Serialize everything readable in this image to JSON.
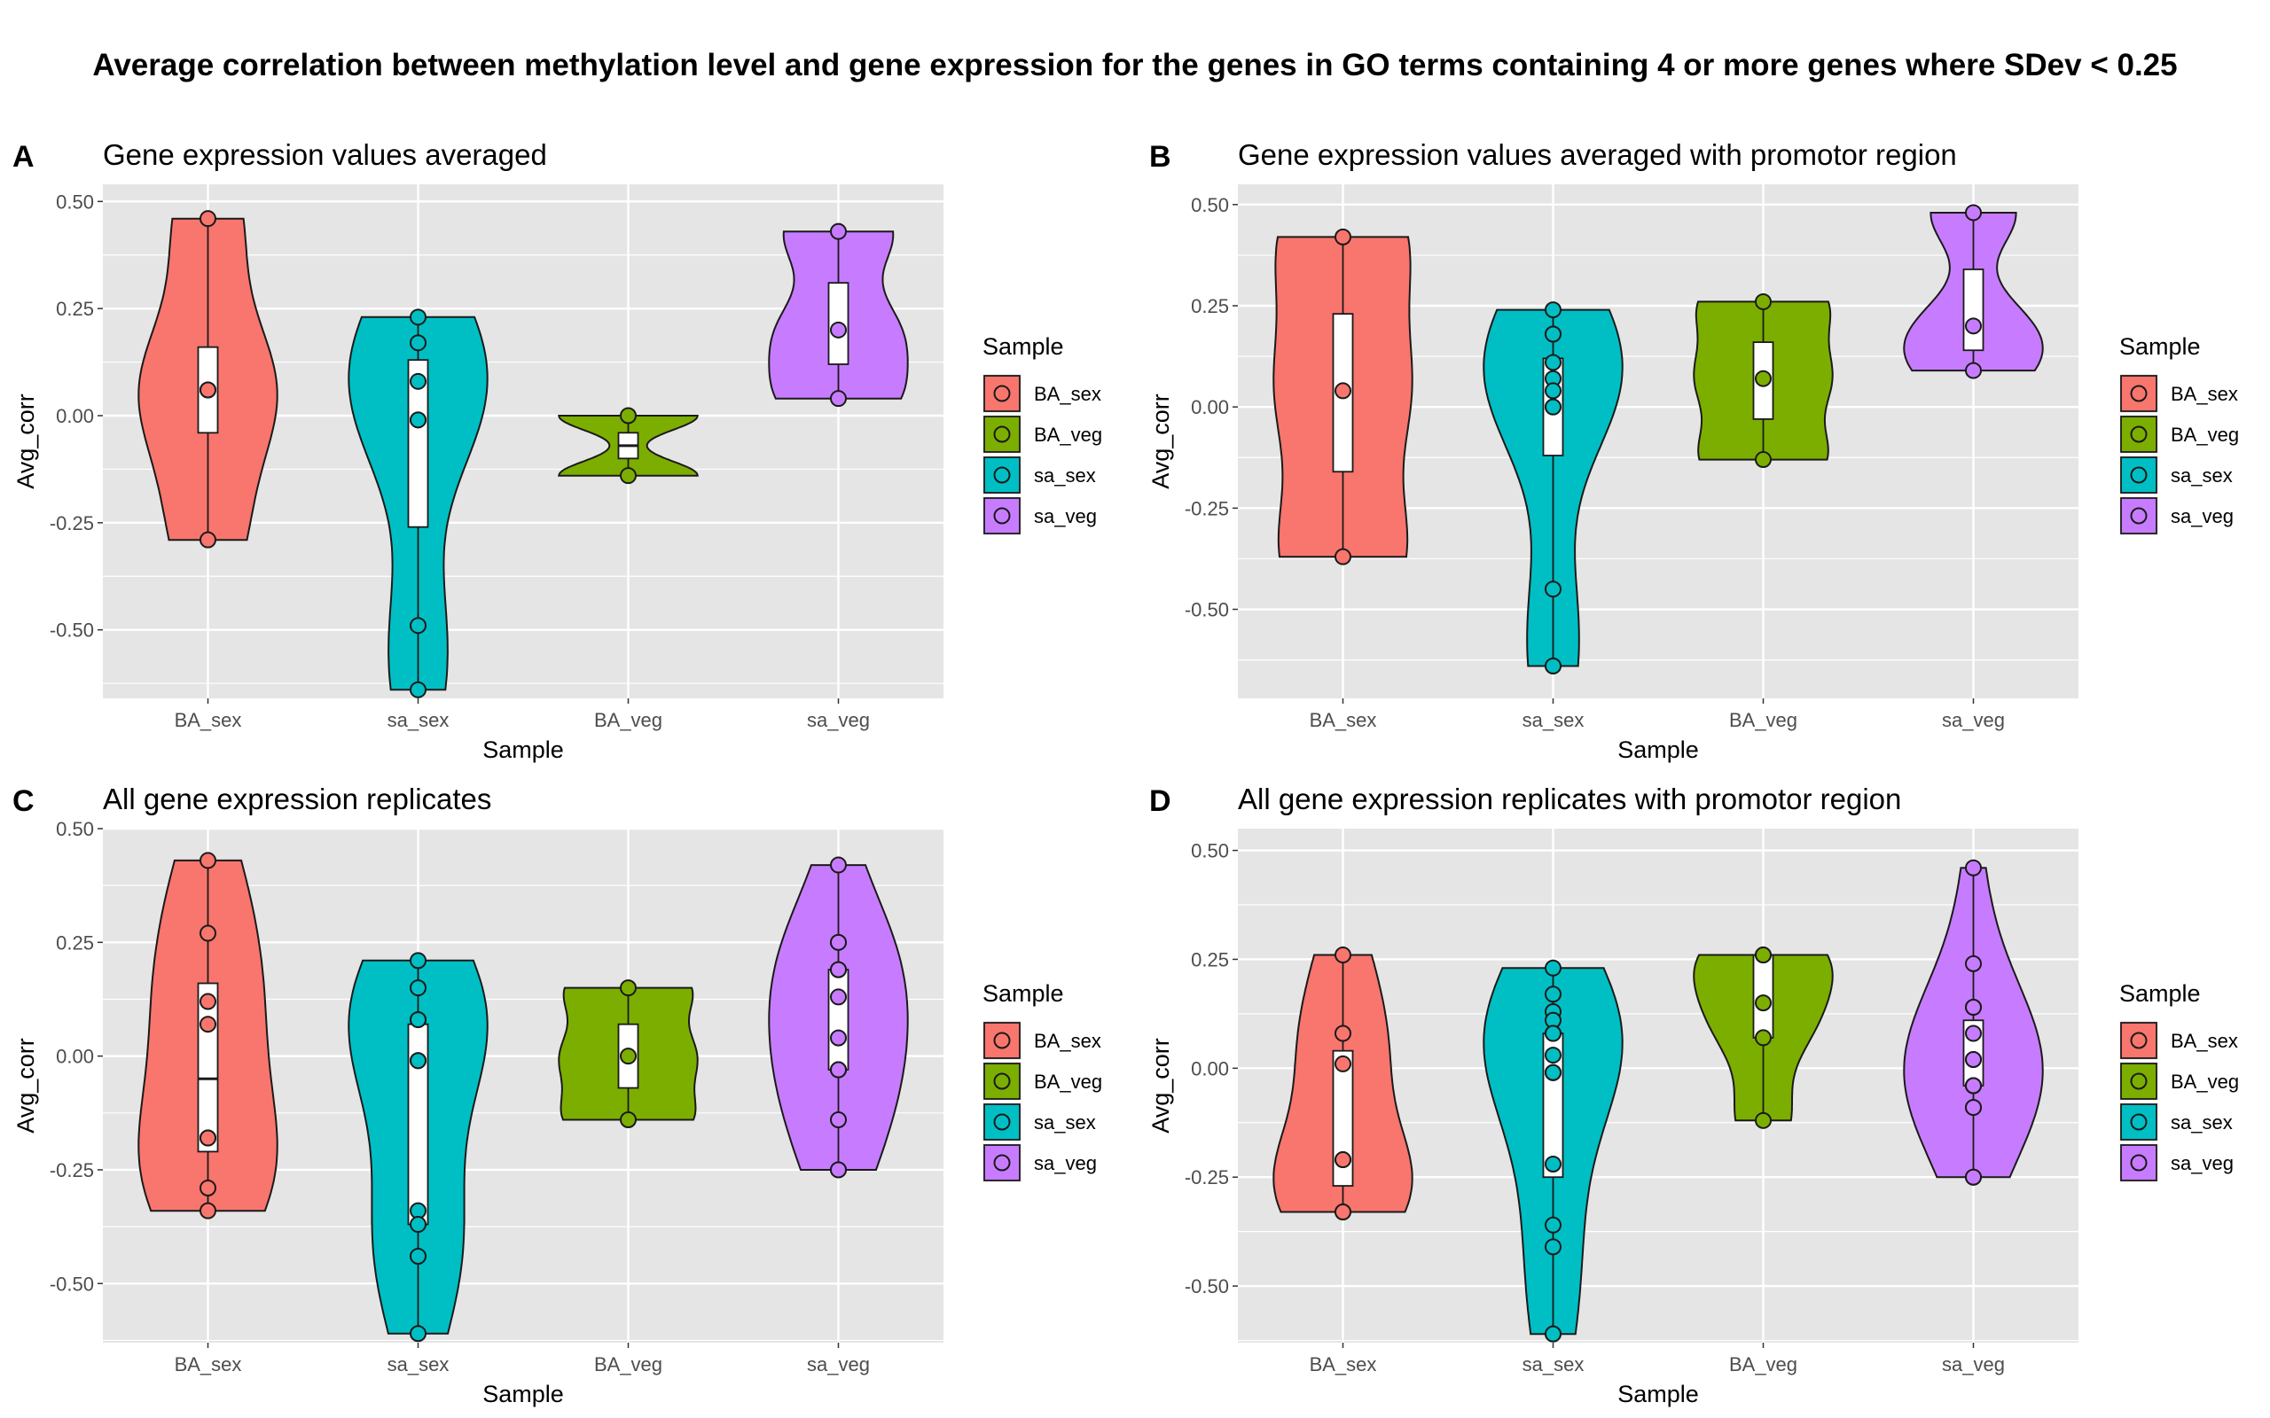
{
  "title": "Average correlation between methylation level and gene expression for the genes in GO terms containing 4 or more genes where SDev < 0.25",
  "colors": {
    "BA_sex": "#F8766D",
    "BA_veg": "#7CAE00",
    "sa_sex": "#00BFC4",
    "sa_veg": "#C77CFF",
    "panel_background": "#e5e5e5",
    "grid": "#ffffff"
  },
  "chart_data": [
    {
      "type": "violin",
      "panel_letter": "A",
      "title": "Gene expression values averaged",
      "xlabel": "Sample",
      "ylabel": "Avg_corr",
      "ylim": [
        -0.66,
        0.54
      ],
      "y_ticks": [
        "0.50",
        "0.25",
        "0.00",
        "-0.25",
        "-0.50"
      ],
      "categories": [
        "BA_sex",
        "sa_sex",
        "BA_veg",
        "sa_veg"
      ],
      "legend": {
        "title": "Sample",
        "items": [
          "BA_sex",
          "BA_veg",
          "sa_sex",
          "sa_veg"
        ]
      },
      "series": [
        {
          "category": "BA_sex",
          "points": [
            0.46,
            0.06,
            0.06,
            -0.29
          ],
          "box": [
            -0.04,
            0.06,
            0.16
          ],
          "median_drawn": false
        },
        {
          "category": "sa_sex",
          "points": [
            0.23,
            0.17,
            0.08,
            -0.01,
            -0.01,
            -0.49,
            -0.64
          ],
          "box": [
            -0.26,
            -0.01,
            0.13
          ],
          "median_drawn": false
        },
        {
          "category": "BA_veg",
          "points": [
            0.0,
            -0.14
          ],
          "box": [
            -0.1,
            -0.07,
            -0.04
          ],
          "median_drawn": true
        },
        {
          "category": "sa_veg",
          "points": [
            0.43,
            0.2,
            0.04
          ],
          "box": [
            0.12,
            0.2,
            0.31
          ],
          "median_drawn": false
        }
      ]
    },
    {
      "type": "violin",
      "panel_letter": "B",
      "title": "Gene expression values averaged with promotor region",
      "xlabel": "Sample",
      "ylabel": "Avg_corr",
      "ylim": [
        -0.72,
        0.55
      ],
      "y_ticks": [
        "0.50",
        "0.25",
        "0.00",
        "-0.25",
        "-0.50"
      ],
      "categories": [
        "BA_sex",
        "sa_sex",
        "BA_veg",
        "sa_veg"
      ],
      "legend": {
        "title": "Sample",
        "items": [
          "BA_sex",
          "BA_veg",
          "sa_sex",
          "sa_veg"
        ]
      },
      "series": [
        {
          "category": "BA_sex",
          "points": [
            0.42,
            0.04,
            -0.37
          ],
          "box": [
            -0.16,
            0.04,
            0.23
          ],
          "median_drawn": false
        },
        {
          "category": "sa_sex",
          "points": [
            0.24,
            0.18,
            0.18,
            0.11,
            0.07,
            0.04,
            0.0,
            0.0,
            -0.45,
            -0.64,
            -0.64
          ],
          "box": [
            -0.12,
            0.04,
            0.12
          ],
          "median_drawn": false
        },
        {
          "category": "BA_veg",
          "points": [
            0.26,
            0.07,
            -0.13
          ],
          "box": [
            -0.03,
            0.07,
            0.16
          ],
          "median_drawn": false
        },
        {
          "category": "sa_veg",
          "points": [
            0.48,
            0.2,
            0.09
          ],
          "box": [
            0.14,
            0.2,
            0.34
          ],
          "median_drawn": false
        }
      ]
    },
    {
      "type": "violin",
      "panel_letter": "C",
      "title": "All gene expression replicates",
      "xlabel": "Sample",
      "ylabel": "Avg_corr",
      "ylim": [
        -0.63,
        0.5
      ],
      "y_ticks": [
        "0.50",
        "0.25",
        "0.00",
        "-0.25",
        "-0.50"
      ],
      "categories": [
        "BA_sex",
        "sa_sex",
        "BA_veg",
        "sa_veg"
      ],
      "legend": {
        "title": "Sample",
        "items": [
          "BA_sex",
          "BA_veg",
          "sa_sex",
          "sa_veg"
        ]
      },
      "series": [
        {
          "category": "BA_sex",
          "points": [
            0.43,
            0.27,
            0.12,
            0.07,
            -0.18,
            -0.18,
            -0.29,
            -0.34
          ],
          "box": [
            -0.21,
            -0.05,
            0.16
          ],
          "median_drawn": true
        },
        {
          "category": "sa_sex",
          "points": [
            0.21,
            0.15,
            0.08,
            0.08,
            -0.01,
            -0.01,
            -0.34,
            -0.37,
            -0.44,
            -0.61
          ],
          "box": [
            -0.37,
            -0.01,
            0.07
          ],
          "median_drawn": false
        },
        {
          "category": "BA_veg",
          "points": [
            0.15,
            0.0,
            -0.14
          ],
          "box": [
            -0.07,
            0.0,
            0.07
          ],
          "median_drawn": false
        },
        {
          "category": "sa_veg",
          "points": [
            0.42,
            0.25,
            0.25,
            0.19,
            0.19,
            0.13,
            0.04,
            -0.03,
            -0.03,
            -0.03,
            -0.14,
            -0.25,
            -0.25
          ],
          "box": [
            -0.03,
            0.04,
            0.19
          ],
          "median_drawn": false
        }
      ]
    },
    {
      "type": "violin",
      "panel_letter": "D",
      "title": "All gene expression replicates with promotor region",
      "xlabel": "Sample",
      "ylabel": "Avg_corr",
      "ylim": [
        -0.63,
        0.55
      ],
      "y_ticks": [
        "0.50",
        "0.25",
        "0.00",
        "-0.25",
        "-0.50"
      ],
      "categories": [
        "BA_sex",
        "sa_sex",
        "BA_veg",
        "sa_veg"
      ],
      "legend": {
        "title": "Sample",
        "items": [
          "BA_sex",
          "BA_veg",
          "sa_sex",
          "sa_veg"
        ]
      },
      "series": [
        {
          "category": "BA_sex",
          "points": [
            0.26,
            0.08,
            0.01,
            -0.21,
            -0.21,
            -0.33,
            -0.33
          ],
          "box": [
            -0.27,
            0.01,
            0.04
          ],
          "median_drawn": false
        },
        {
          "category": "sa_sex",
          "points": [
            0.23,
            0.17,
            0.13,
            0.11,
            0.08,
            0.08,
            0.03,
            -0.01,
            -0.01,
            -0.01,
            -0.22,
            -0.36,
            -0.41,
            -0.61,
            -0.61
          ],
          "box": [
            -0.25,
            0.03,
            0.08
          ],
          "median_drawn": false
        },
        {
          "category": "BA_veg",
          "points": [
            0.26,
            0.26,
            0.15,
            0.07,
            -0.12
          ],
          "box": [
            0.07,
            0.15,
            0.26
          ],
          "median_drawn": false
        },
        {
          "category": "sa_veg",
          "points": [
            0.46,
            0.24,
            0.14,
            0.14,
            0.08,
            0.02,
            0.02,
            -0.04,
            -0.04,
            -0.04,
            -0.09,
            -0.09,
            -0.25,
            -0.25
          ],
          "box": [
            -0.04,
            0.02,
            0.11
          ],
          "median_drawn": false
        }
      ]
    }
  ]
}
